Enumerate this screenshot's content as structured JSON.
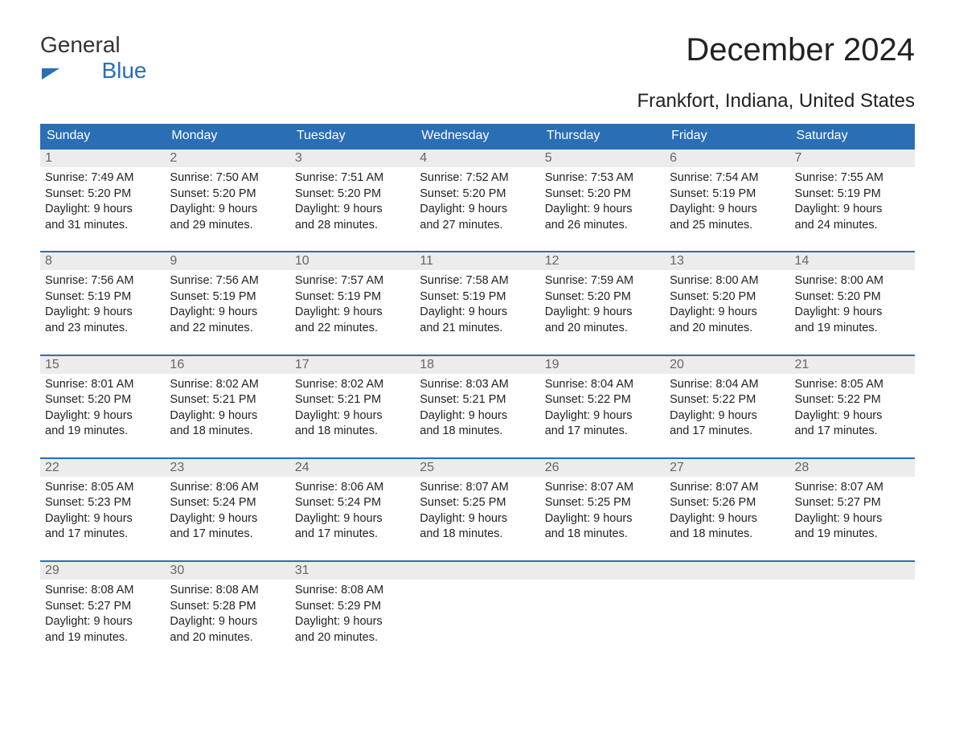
{
  "logo": {
    "line1": "General",
    "line2": "Blue"
  },
  "title": "December 2024",
  "location": "Frankfort, Indiana, United States",
  "colors": {
    "header_bg": "#2a6eb5",
    "header_text": "#ffffff",
    "daynum_bg": "#ececec",
    "daynum_text": "#666666",
    "body_text": "#222222",
    "row_border": "#2a6eb5"
  },
  "weekdays": [
    "Sunday",
    "Monday",
    "Tuesday",
    "Wednesday",
    "Thursday",
    "Friday",
    "Saturday"
  ],
  "weeks": [
    [
      {
        "day": "1",
        "sunrise": "Sunrise: 7:49 AM",
        "sunset": "Sunset: 5:20 PM",
        "dl1": "Daylight: 9 hours",
        "dl2": "and 31 minutes."
      },
      {
        "day": "2",
        "sunrise": "Sunrise: 7:50 AM",
        "sunset": "Sunset: 5:20 PM",
        "dl1": "Daylight: 9 hours",
        "dl2": "and 29 minutes."
      },
      {
        "day": "3",
        "sunrise": "Sunrise: 7:51 AM",
        "sunset": "Sunset: 5:20 PM",
        "dl1": "Daylight: 9 hours",
        "dl2": "and 28 minutes."
      },
      {
        "day": "4",
        "sunrise": "Sunrise: 7:52 AM",
        "sunset": "Sunset: 5:20 PM",
        "dl1": "Daylight: 9 hours",
        "dl2": "and 27 minutes."
      },
      {
        "day": "5",
        "sunrise": "Sunrise: 7:53 AM",
        "sunset": "Sunset: 5:20 PM",
        "dl1": "Daylight: 9 hours",
        "dl2": "and 26 minutes."
      },
      {
        "day": "6",
        "sunrise": "Sunrise: 7:54 AM",
        "sunset": "Sunset: 5:19 PM",
        "dl1": "Daylight: 9 hours",
        "dl2": "and 25 minutes."
      },
      {
        "day": "7",
        "sunrise": "Sunrise: 7:55 AM",
        "sunset": "Sunset: 5:19 PM",
        "dl1": "Daylight: 9 hours",
        "dl2": "and 24 minutes."
      }
    ],
    [
      {
        "day": "8",
        "sunrise": "Sunrise: 7:56 AM",
        "sunset": "Sunset: 5:19 PM",
        "dl1": "Daylight: 9 hours",
        "dl2": "and 23 minutes."
      },
      {
        "day": "9",
        "sunrise": "Sunrise: 7:56 AM",
        "sunset": "Sunset: 5:19 PM",
        "dl1": "Daylight: 9 hours",
        "dl2": "and 22 minutes."
      },
      {
        "day": "10",
        "sunrise": "Sunrise: 7:57 AM",
        "sunset": "Sunset: 5:19 PM",
        "dl1": "Daylight: 9 hours",
        "dl2": "and 22 minutes."
      },
      {
        "day": "11",
        "sunrise": "Sunrise: 7:58 AM",
        "sunset": "Sunset: 5:19 PM",
        "dl1": "Daylight: 9 hours",
        "dl2": "and 21 minutes."
      },
      {
        "day": "12",
        "sunrise": "Sunrise: 7:59 AM",
        "sunset": "Sunset: 5:20 PM",
        "dl1": "Daylight: 9 hours",
        "dl2": "and 20 minutes."
      },
      {
        "day": "13",
        "sunrise": "Sunrise: 8:00 AM",
        "sunset": "Sunset: 5:20 PM",
        "dl1": "Daylight: 9 hours",
        "dl2": "and 20 minutes."
      },
      {
        "day": "14",
        "sunrise": "Sunrise: 8:00 AM",
        "sunset": "Sunset: 5:20 PM",
        "dl1": "Daylight: 9 hours",
        "dl2": "and 19 minutes."
      }
    ],
    [
      {
        "day": "15",
        "sunrise": "Sunrise: 8:01 AM",
        "sunset": "Sunset: 5:20 PM",
        "dl1": "Daylight: 9 hours",
        "dl2": "and 19 minutes."
      },
      {
        "day": "16",
        "sunrise": "Sunrise: 8:02 AM",
        "sunset": "Sunset: 5:21 PM",
        "dl1": "Daylight: 9 hours",
        "dl2": "and 18 minutes."
      },
      {
        "day": "17",
        "sunrise": "Sunrise: 8:02 AM",
        "sunset": "Sunset: 5:21 PM",
        "dl1": "Daylight: 9 hours",
        "dl2": "and 18 minutes."
      },
      {
        "day": "18",
        "sunrise": "Sunrise: 8:03 AM",
        "sunset": "Sunset: 5:21 PM",
        "dl1": "Daylight: 9 hours",
        "dl2": "and 18 minutes."
      },
      {
        "day": "19",
        "sunrise": "Sunrise: 8:04 AM",
        "sunset": "Sunset: 5:22 PM",
        "dl1": "Daylight: 9 hours",
        "dl2": "and 17 minutes."
      },
      {
        "day": "20",
        "sunrise": "Sunrise: 8:04 AM",
        "sunset": "Sunset: 5:22 PM",
        "dl1": "Daylight: 9 hours",
        "dl2": "and 17 minutes."
      },
      {
        "day": "21",
        "sunrise": "Sunrise: 8:05 AM",
        "sunset": "Sunset: 5:22 PM",
        "dl1": "Daylight: 9 hours",
        "dl2": "and 17 minutes."
      }
    ],
    [
      {
        "day": "22",
        "sunrise": "Sunrise: 8:05 AM",
        "sunset": "Sunset: 5:23 PM",
        "dl1": "Daylight: 9 hours",
        "dl2": "and 17 minutes."
      },
      {
        "day": "23",
        "sunrise": "Sunrise: 8:06 AM",
        "sunset": "Sunset: 5:24 PM",
        "dl1": "Daylight: 9 hours",
        "dl2": "and 17 minutes."
      },
      {
        "day": "24",
        "sunrise": "Sunrise: 8:06 AM",
        "sunset": "Sunset: 5:24 PM",
        "dl1": "Daylight: 9 hours",
        "dl2": "and 17 minutes."
      },
      {
        "day": "25",
        "sunrise": "Sunrise: 8:07 AM",
        "sunset": "Sunset: 5:25 PM",
        "dl1": "Daylight: 9 hours",
        "dl2": "and 18 minutes."
      },
      {
        "day": "26",
        "sunrise": "Sunrise: 8:07 AM",
        "sunset": "Sunset: 5:25 PM",
        "dl1": "Daylight: 9 hours",
        "dl2": "and 18 minutes."
      },
      {
        "day": "27",
        "sunrise": "Sunrise: 8:07 AM",
        "sunset": "Sunset: 5:26 PM",
        "dl1": "Daylight: 9 hours",
        "dl2": "and 18 minutes."
      },
      {
        "day": "28",
        "sunrise": "Sunrise: 8:07 AM",
        "sunset": "Sunset: 5:27 PM",
        "dl1": "Daylight: 9 hours",
        "dl2": "and 19 minutes."
      }
    ],
    [
      {
        "day": "29",
        "sunrise": "Sunrise: 8:08 AM",
        "sunset": "Sunset: 5:27 PM",
        "dl1": "Daylight: 9 hours",
        "dl2": "and 19 minutes."
      },
      {
        "day": "30",
        "sunrise": "Sunrise: 8:08 AM",
        "sunset": "Sunset: 5:28 PM",
        "dl1": "Daylight: 9 hours",
        "dl2": "and 20 minutes."
      },
      {
        "day": "31",
        "sunrise": "Sunrise: 8:08 AM",
        "sunset": "Sunset: 5:29 PM",
        "dl1": "Daylight: 9 hours",
        "dl2": "and 20 minutes."
      },
      {
        "empty": true
      },
      {
        "empty": true
      },
      {
        "empty": true
      },
      {
        "empty": true
      }
    ]
  ]
}
